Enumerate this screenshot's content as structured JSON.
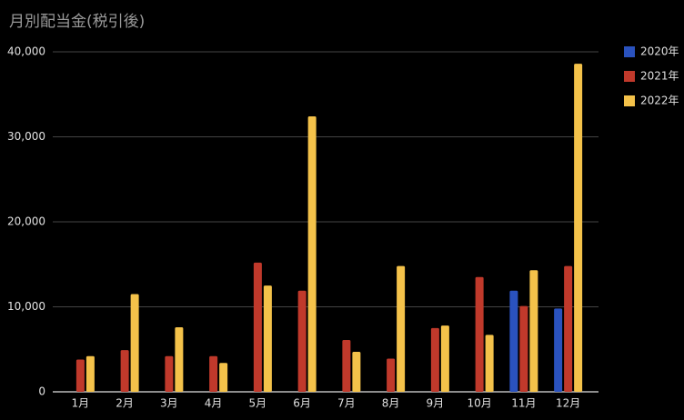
{
  "chart_data": {
    "type": "bar",
    "title": "月別配当金(税引後)",
    "categories": [
      "1月",
      "2月",
      "3月",
      "4月",
      "5月",
      "6月",
      "7月",
      "8月",
      "9月",
      "10月",
      "11月",
      "12月"
    ],
    "series": [
      {
        "name": "2020年",
        "color": "#2a52be",
        "values": [
          null,
          null,
          null,
          null,
          null,
          null,
          null,
          null,
          null,
          null,
          11900,
          9800
        ]
      },
      {
        "name": "2021年",
        "color": "#c0392b",
        "values": [
          3800,
          4900,
          4200,
          4200,
          15200,
          11900,
          6100,
          3900,
          7500,
          13500,
          10100,
          14800
        ]
      },
      {
        "name": "2022年",
        "color": "#f4c24a",
        "values": [
          4200,
          11500,
          7600,
          3400,
          12500,
          32400,
          4700,
          14800,
          7800,
          6700,
          14300,
          38600
        ]
      }
    ],
    "ylim": [
      0,
      40000
    ],
    "yticks": [
      0,
      {
        "value": 10000,
        "label": "10,000"
      },
      {
        "value": 20000,
        "label": "20,000"
      },
      {
        "value": 30000,
        "label": "30,000"
      },
      {
        "value": 40000,
        "label": "40,000"
      }
    ],
    "grid": true,
    "legend": "right"
  }
}
